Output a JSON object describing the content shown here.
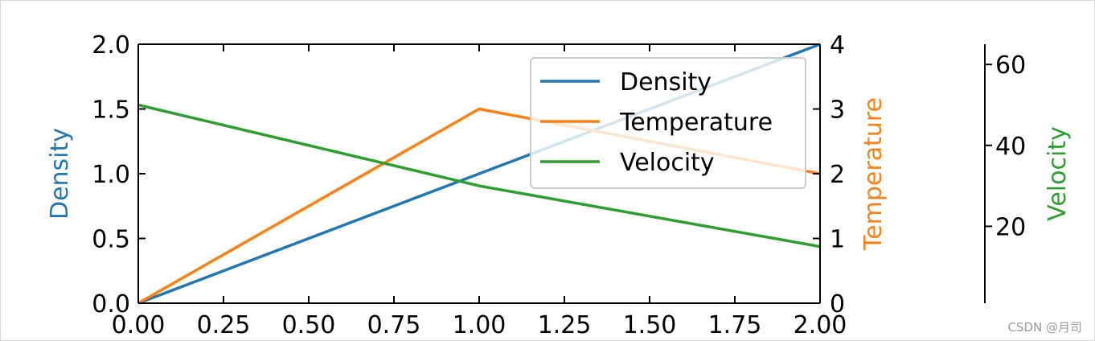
{
  "chart_data": {
    "type": "line",
    "x": [
      0,
      1,
      2
    ],
    "xlim": [
      0,
      2
    ],
    "xticks": [
      "0.00",
      "0.25",
      "0.50",
      "0.75",
      "1.00",
      "1.25",
      "1.50",
      "1.75",
      "2.00"
    ],
    "axes": {
      "left": {
        "label": "Density",
        "color": "#1f77b4",
        "ylim": [
          0,
          2
        ],
        "ticks": [
          {
            "value": 0,
            "label": "0.0"
          },
          {
            "value": 0.5,
            "label": "0.5"
          },
          {
            "value": 1,
            "label": "1.0"
          },
          {
            "value": 1.5,
            "label": "1.5"
          },
          {
            "value": 2,
            "label": "2.0"
          }
        ]
      },
      "right": {
        "label": "Temperature",
        "color": "#ff7f0e",
        "ylim": [
          0,
          4
        ],
        "ticks": [
          {
            "value": 0,
            "label": "0"
          },
          {
            "value": 1,
            "label": "1"
          },
          {
            "value": 2,
            "label": "2"
          },
          {
            "value": 3,
            "label": "3"
          },
          {
            "value": 4,
            "label": "4"
          }
        ]
      },
      "offset_right": {
        "label": "Velocity",
        "color": "#2ca02c",
        "ylim": [
          1,
          65
        ],
        "ticks": [
          {
            "value": 20,
            "label": "20"
          },
          {
            "value": 40,
            "label": "40"
          },
          {
            "value": 60,
            "label": "60"
          }
        ]
      }
    },
    "series": [
      {
        "name": "Density",
        "axis": "left",
        "color": "#1f77b4",
        "values": [
          0,
          1,
          2
        ]
      },
      {
        "name": "Temperature",
        "axis": "right",
        "color": "#ff7f0e",
        "values": [
          0,
          3,
          2
        ]
      },
      {
        "name": "Velocity",
        "axis": "offset_right",
        "color": "#2ca02c",
        "values": [
          50,
          30,
          15
        ]
      }
    ],
    "legend": {
      "position": "upper-right",
      "entries": [
        "Density",
        "Temperature",
        "Velocity"
      ]
    }
  },
  "watermark": "CSDN @月司"
}
